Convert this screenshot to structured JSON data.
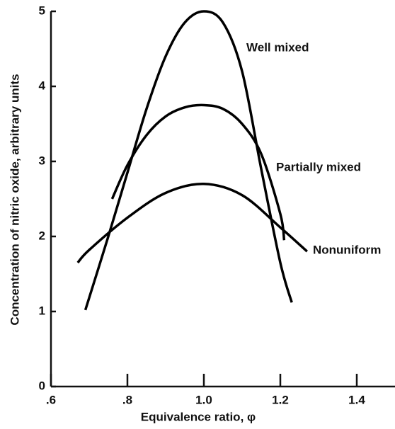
{
  "chart_data": {
    "type": "line",
    "xlabel": "Equivalence ratio, φ",
    "ylabel": "Concentration of nitric oxide, arbitrary units",
    "xlim": [
      0.6,
      1.5
    ],
    "ylim": [
      0,
      5
    ],
    "xticks": [
      {
        "value": 0.6,
        "label": ".6"
      },
      {
        "value": 0.8,
        "label": ".8"
      },
      {
        "value": 1.0,
        "label": "1.0"
      },
      1.2,
      1.4
    ],
    "yticks": [
      0,
      1,
      2,
      3,
      4,
      5
    ],
    "series": [
      {
        "name": "Well mixed",
        "color": "#000000",
        "x": [
          0.69,
          0.75,
          0.8,
          0.85,
          0.9,
          0.95,
          1.0,
          1.05,
          1.1,
          1.15,
          1.2,
          1.23
        ],
        "values": [
          1.02,
          2.0,
          2.85,
          3.7,
          4.4,
          4.85,
          5.0,
          4.85,
          4.2,
          2.9,
          1.65,
          1.12
        ]
      },
      {
        "name": "Partially mixed",
        "color": "#000000",
        "x": [
          0.76,
          0.8,
          0.85,
          0.9,
          0.95,
          1.0,
          1.05,
          1.1,
          1.15,
          1.2,
          1.21
        ],
        "values": [
          2.5,
          2.95,
          3.35,
          3.6,
          3.72,
          3.75,
          3.7,
          3.5,
          3.1,
          2.3,
          1.95
        ]
      },
      {
        "name": "Nonuniform",
        "color": "#000000",
        "x": [
          0.67,
          0.7,
          0.8,
          0.9,
          1.0,
          1.1,
          1.2,
          1.27
        ],
        "values": [
          1.65,
          1.82,
          2.25,
          2.58,
          2.7,
          2.55,
          2.12,
          1.8
        ]
      }
    ]
  }
}
